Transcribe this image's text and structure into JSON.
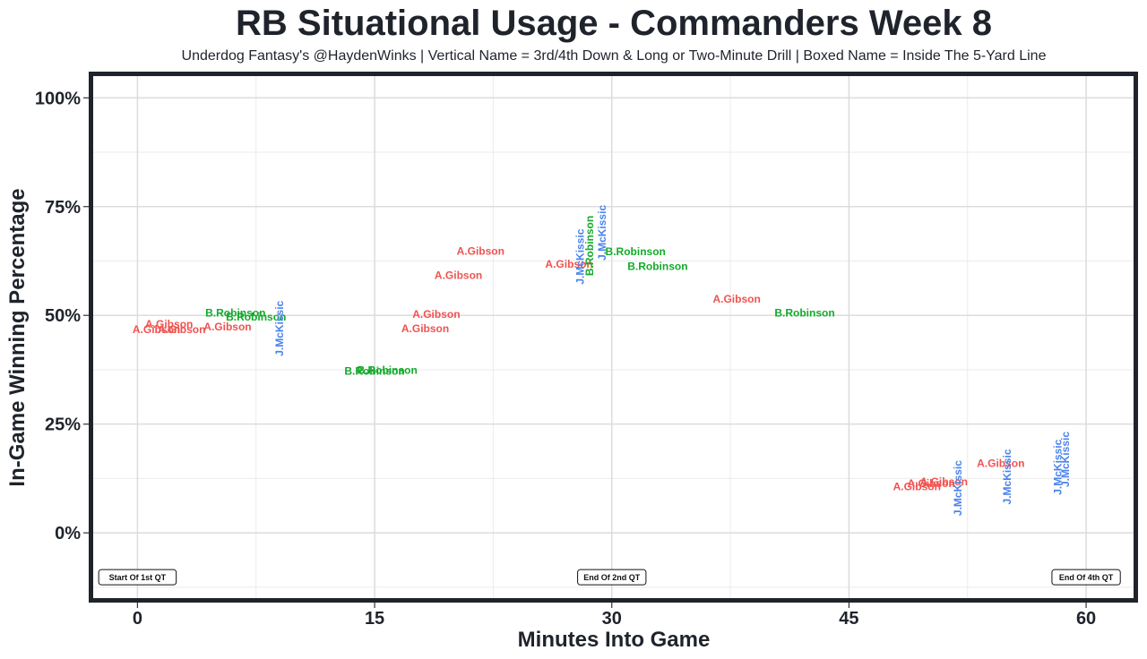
{
  "chart_data": {
    "type": "scatter",
    "title": "RB Situational Usage - Commanders Week 8",
    "subtitle": "Underdog Fantasy's @HaydenWinks | Vertical Name = 3rd/4th Down & Long or Two-Minute Drill | Boxed Name = Inside The 5-Yard Line",
    "xlabel": "Minutes Into Game",
    "ylabel": "In-Game Winning Percentage",
    "xlim": [
      -2.8,
      63
    ],
    "ylim": [
      -15,
      105
    ],
    "x_ticks": [
      0,
      15,
      30,
      45,
      60
    ],
    "x_tick_labels": [
      "0",
      "15",
      "30",
      "45",
      "60"
    ],
    "y_ticks": [
      0,
      25,
      50,
      75,
      100
    ],
    "y_tick_labels": [
      "0%",
      "25%",
      "50%",
      "75%",
      "100%"
    ],
    "grid": true,
    "colors": {
      "A.Gibson": "#f0524f",
      "B.Robinson": "#13aa2b",
      "J.McKissic": "#4a83ec",
      "frame": "#1f232b"
    },
    "annotations": [
      {
        "text": "Start Of 1st QT",
        "x": 0,
        "y": -10.2
      },
      {
        "text": "End Of 2nd QT",
        "x": 30,
        "y": -10.2
      },
      {
        "text": "End Of 4th QT",
        "x": 60,
        "y": -10.2
      }
    ],
    "points": [
      {
        "name": "A.Gibson",
        "x": 2.0,
        "y": 48.0,
        "vertical": false
      },
      {
        "name": "A.Gibson",
        "x": 1.2,
        "y": 46.8,
        "vertical": false
      },
      {
        "name": "A.Gibson",
        "x": 2.8,
        "y": 46.8,
        "vertical": false
      },
      {
        "name": "A.Gibson",
        "x": 5.7,
        "y": 47.4,
        "vertical": false
      },
      {
        "name": "B.Robinson",
        "x": 6.2,
        "y": 50.6,
        "vertical": false
      },
      {
        "name": "B.Robinson",
        "x": 7.5,
        "y": 49.6,
        "vertical": false
      },
      {
        "name": "J.McKissic",
        "x": 9.0,
        "y": 47.0,
        "vertical": true
      },
      {
        "name": "B.Robinson",
        "x": 15.0,
        "y": 37.2,
        "vertical": false
      },
      {
        "name": "B.Robinson",
        "x": 15.8,
        "y": 37.4,
        "vertical": false
      },
      {
        "name": "A.Gibson",
        "x": 18.9,
        "y": 50.2,
        "vertical": false
      },
      {
        "name": "A.Gibson",
        "x": 18.2,
        "y": 47.0,
        "vertical": false
      },
      {
        "name": "A.Gibson",
        "x": 20.3,
        "y": 59.2,
        "vertical": false
      },
      {
        "name": "A.Gibson",
        "x": 21.7,
        "y": 64.8,
        "vertical": false
      },
      {
        "name": "A.Gibson",
        "x": 27.3,
        "y": 61.8,
        "vertical": false
      },
      {
        "name": "J.McKissic",
        "x": 28.0,
        "y": 63.5,
        "vertical": true
      },
      {
        "name": "B.Robinson",
        "x": 28.6,
        "y": 66.0,
        "vertical": true
      },
      {
        "name": "J.McKissic",
        "x": 29.4,
        "y": 69.0,
        "vertical": true
      },
      {
        "name": "B.Robinson",
        "x": 31.5,
        "y": 64.7,
        "vertical": false
      },
      {
        "name": "B.Robinson",
        "x": 32.9,
        "y": 61.3,
        "vertical": false
      },
      {
        "name": "A.Gibson",
        "x": 37.9,
        "y": 53.7,
        "vertical": false
      },
      {
        "name": "B.Robinson",
        "x": 42.2,
        "y": 50.6,
        "vertical": false
      },
      {
        "name": "A.Gibson",
        "x": 49.3,
        "y": 10.6,
        "vertical": false
      },
      {
        "name": "A.Gibson",
        "x": 50.2,
        "y": 11.3,
        "vertical": false
      },
      {
        "name": "A.Gibson",
        "x": 51.0,
        "y": 11.8,
        "vertical": false
      },
      {
        "name": "J.McKissic",
        "x": 51.9,
        "y": 10.3,
        "vertical": true
      },
      {
        "name": "A.Gibson",
        "x": 54.6,
        "y": 16.0,
        "vertical": false
      },
      {
        "name": "J.McKissic",
        "x": 55.0,
        "y": 12.9,
        "vertical": true
      },
      {
        "name": "J.McKissic",
        "x": 58.2,
        "y": 15.1,
        "vertical": true
      },
      {
        "name": "J.McKissic",
        "x": 58.7,
        "y": 16.9,
        "vertical": true
      }
    ]
  }
}
